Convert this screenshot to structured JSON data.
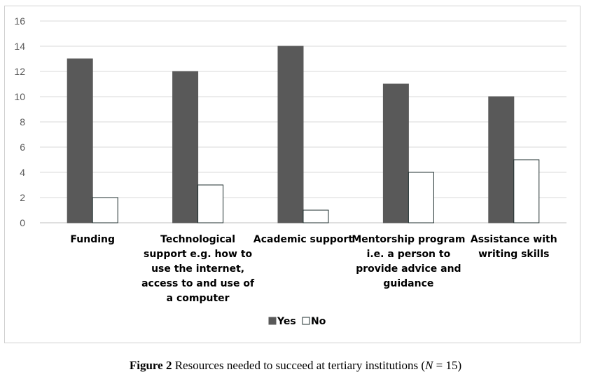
{
  "chart_data": {
    "type": "bar",
    "categories": [
      [
        "Funding"
      ],
      [
        "Technological",
        "support e.g. how to",
        "use the internet,",
        "access to and use of",
        "a computer"
      ],
      [
        "Academic support"
      ],
      [
        "Mentorship program",
        "i.e. a person to",
        "provide advice and",
        "guidance"
      ],
      [
        "Assistance with",
        "writing skills"
      ]
    ],
    "series": [
      {
        "name": "Yes",
        "values": [
          13,
          12,
          14,
          11,
          10
        ],
        "color": "#595959"
      },
      {
        "name": "No",
        "values": [
          2,
          3,
          1,
          4,
          5
        ],
        "color": "#ffffff"
      }
    ],
    "ylim": [
      0,
      16
    ],
    "yticks": [
      "0",
      "2",
      "4",
      "6",
      "8",
      "10",
      "12",
      "14",
      "16"
    ],
    "grid": true,
    "legend_position": "bottom"
  },
  "caption": {
    "label": "Figure 2",
    "text_before": " Resources needed to succeed at tertiary institutions (",
    "n_symbol": "N",
    "text_after": " = 15)"
  }
}
